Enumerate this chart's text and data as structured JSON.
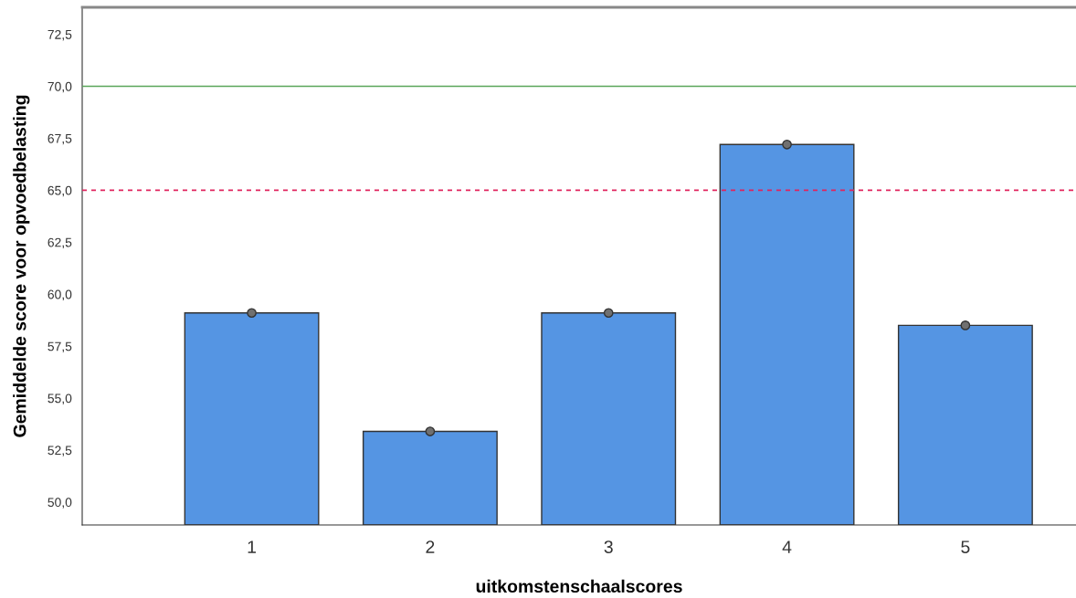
{
  "chart_data": {
    "type": "bar",
    "xlabel": "uitkomstenschaalscores",
    "ylabel": "Gemiddelde score voor opvoedbelasting",
    "categories": [
      "1",
      "2",
      "3",
      "4",
      "5"
    ],
    "series": [
      {
        "color": "#5595e3",
        "values": [
          59.1,
          53.4,
          59.1,
          67.2,
          58.5
        ]
      },
      {
        "type": "scatter",
        "color": "#707070",
        "x": [
          "1",
          "2",
          "3",
          "4",
          "5"
        ],
        "values": [
          59.1,
          53.4,
          59.1,
          67.2,
          58.5
        ]
      }
    ],
    "ylim": [
      48.9,
      73.8
    ],
    "yticks": [
      {
        "value": 50,
        "label": "50,0"
      },
      {
        "value": 52.5,
        "label": "52,5"
      },
      {
        "value": 55,
        "label": "55,0"
      },
      {
        "value": 57.5,
        "label": "57,5"
      },
      {
        "value": 60,
        "label": "60,0"
      },
      {
        "value": 62.5,
        "label": "62,5"
      },
      {
        "value": 65,
        "label": "65,0"
      },
      {
        "value": 67.5,
        "label": "67,5"
      },
      {
        "value": 70,
        "label": "70,0"
      },
      {
        "value": 72.5,
        "label": "72,5"
      }
    ],
    "ref_lines": [
      {
        "axis": "y",
        "value": 70,
        "color": "#5aa55a",
        "line_style": "solid"
      },
      {
        "axis": "y",
        "value": 65,
        "color": "#e0245e",
        "line_style": "dotted"
      }
    ],
    "grid": false,
    "legend": false,
    "marker": "circle"
  }
}
